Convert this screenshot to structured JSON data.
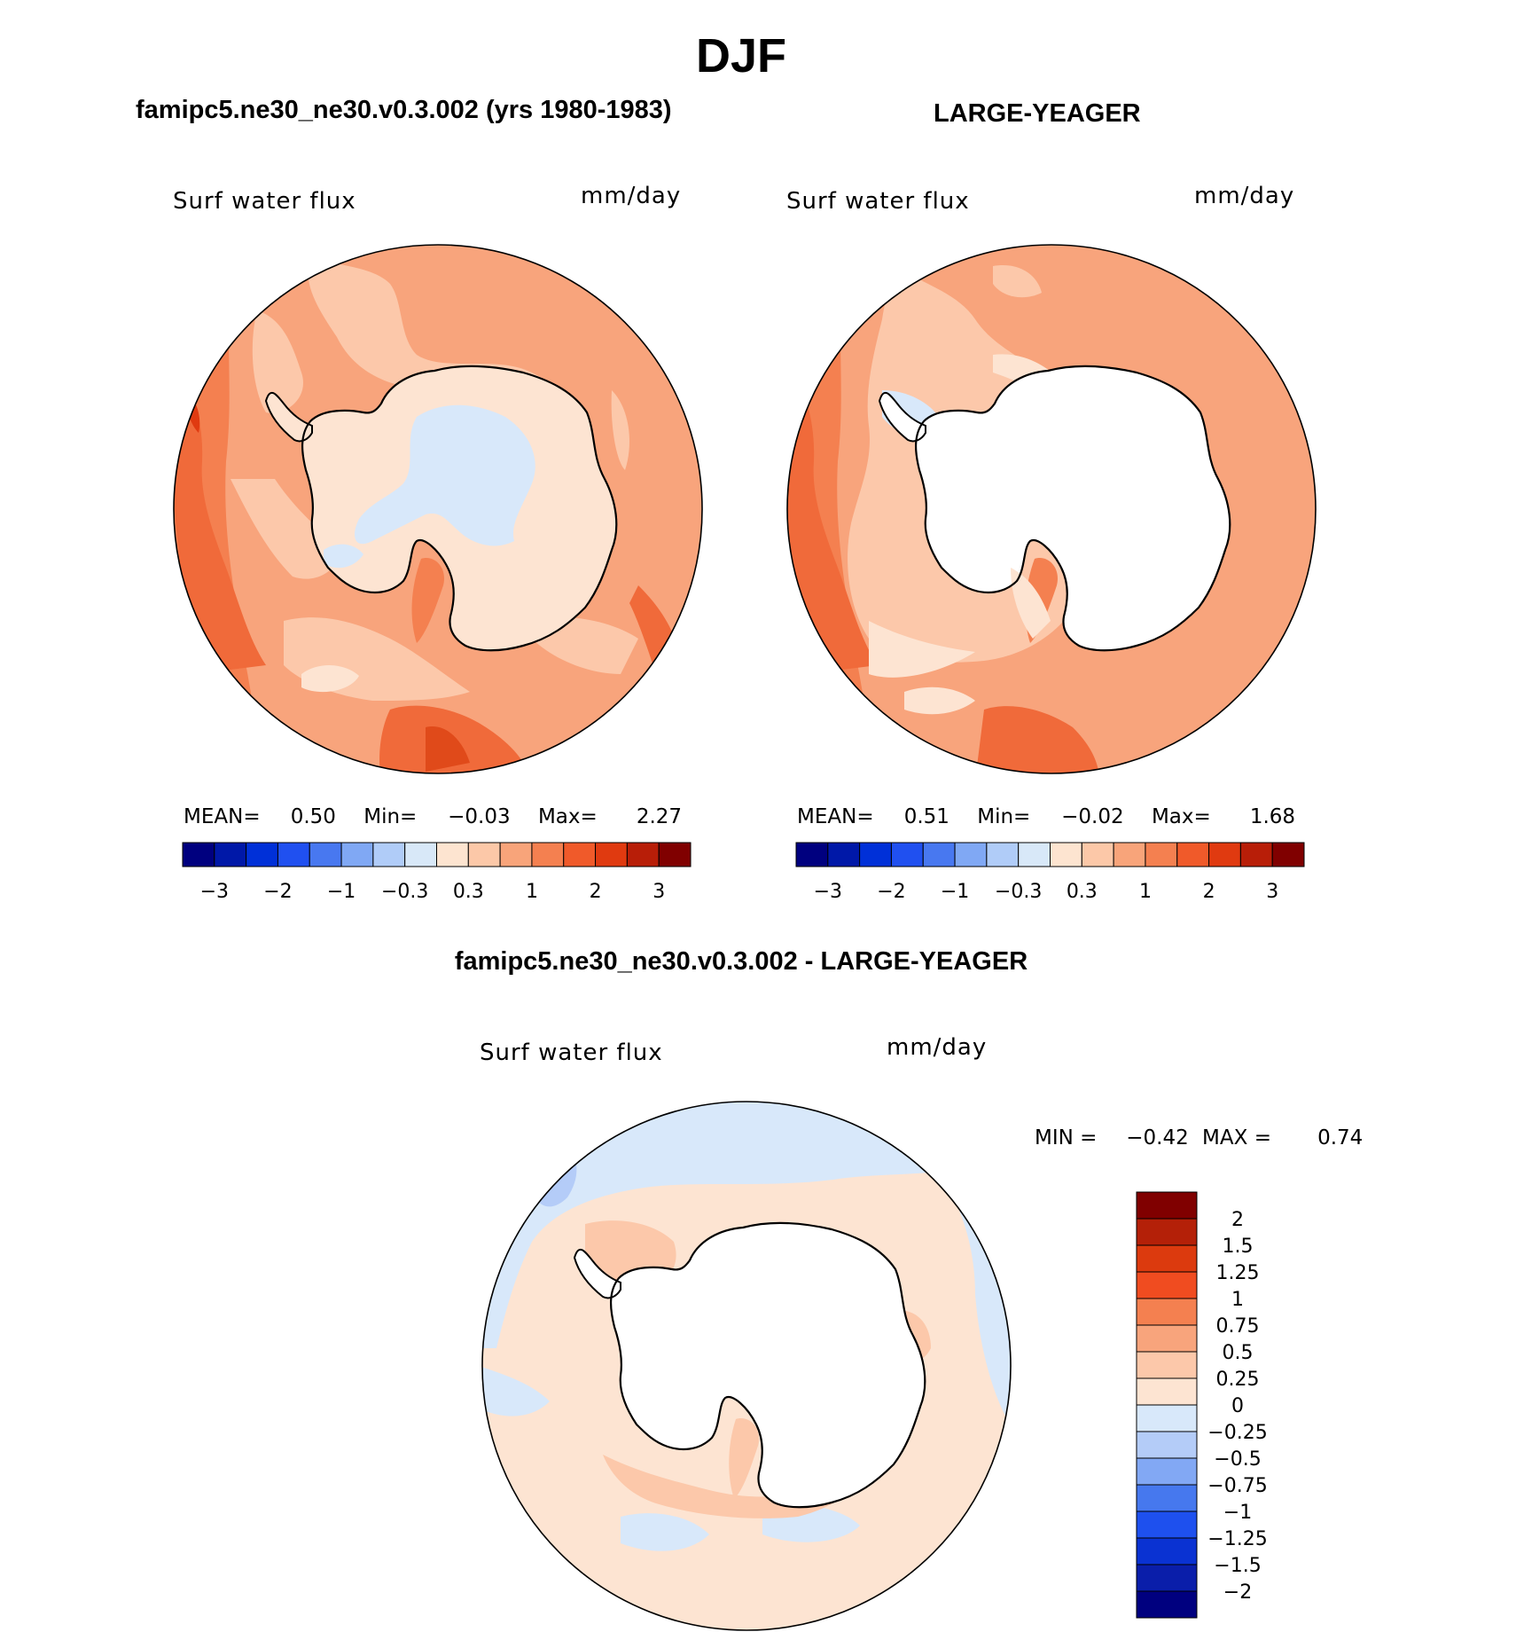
{
  "title": "DJF",
  "panels": {
    "model": {
      "title": "famipc5.ne30_ne30.v0.3.002 (yrs 1980-1983)",
      "variable": "Surf water flux",
      "units": "mm/day",
      "stats": {
        "mean_label": "MEAN=",
        "mean": "0.50",
        "min_label": "Min=",
        "min": "−0.03",
        "max_label": "Max=",
        "max": "2.27"
      }
    },
    "obs": {
      "title": "LARGE-YEAGER",
      "variable": "Surf water flux",
      "units": "mm/day",
      "stats": {
        "mean_label": "MEAN=",
        "mean": "0.51",
        "min_label": "Min=",
        "min": "−0.02",
        "max_label": "Max=",
        "max": "1.68"
      }
    },
    "diff": {
      "title": "famipc5.ne30_ne30.v0.3.002 - LARGE-YEAGER",
      "variable": "Surf water flux",
      "units": "mm/day",
      "stats": {
        "min_label": "MIN =",
        "min": "−0.42",
        "max_label": "MAX =",
        "max": "0.74"
      }
    }
  },
  "colorbars": {
    "top": {
      "colors": [
        "#00007f",
        "#0018a8",
        "#0030d8",
        "#2050f0",
        "#4878f0",
        "#80a8f4",
        "#b0ccf8",
        "#d8e8f8",
        "#fde4d0",
        "#fcc8a8",
        "#f8a47a",
        "#f48050",
        "#f05a2a",
        "#e03a10",
        "#b81e08",
        "#800000"
      ],
      "tick_labels": [
        "−3",
        "−2",
        "−1",
        "−0.3",
        "0.3",
        "1",
        "2",
        "3"
      ]
    },
    "diff": {
      "colors": [
        "#00007f",
        "#0a1eaa",
        "#0a32d2",
        "#1e50ee",
        "#4678ee",
        "#82a8f4",
        "#b4ccf8",
        "#d8e8fa",
        "#fde4d2",
        "#fcc8aa",
        "#f8a47c",
        "#f48050",
        "#f04c20",
        "#dc3a0e",
        "#b42008",
        "#800000"
      ],
      "tick_labels": [
        "2",
        "1.5",
        "1.25",
        "1",
        "0.75",
        "0.5",
        "0.25",
        "0",
        "−0.25",
        "−0.5",
        "−0.75",
        "−1",
        "−1.25",
        "−1.5",
        "−2"
      ]
    }
  }
}
